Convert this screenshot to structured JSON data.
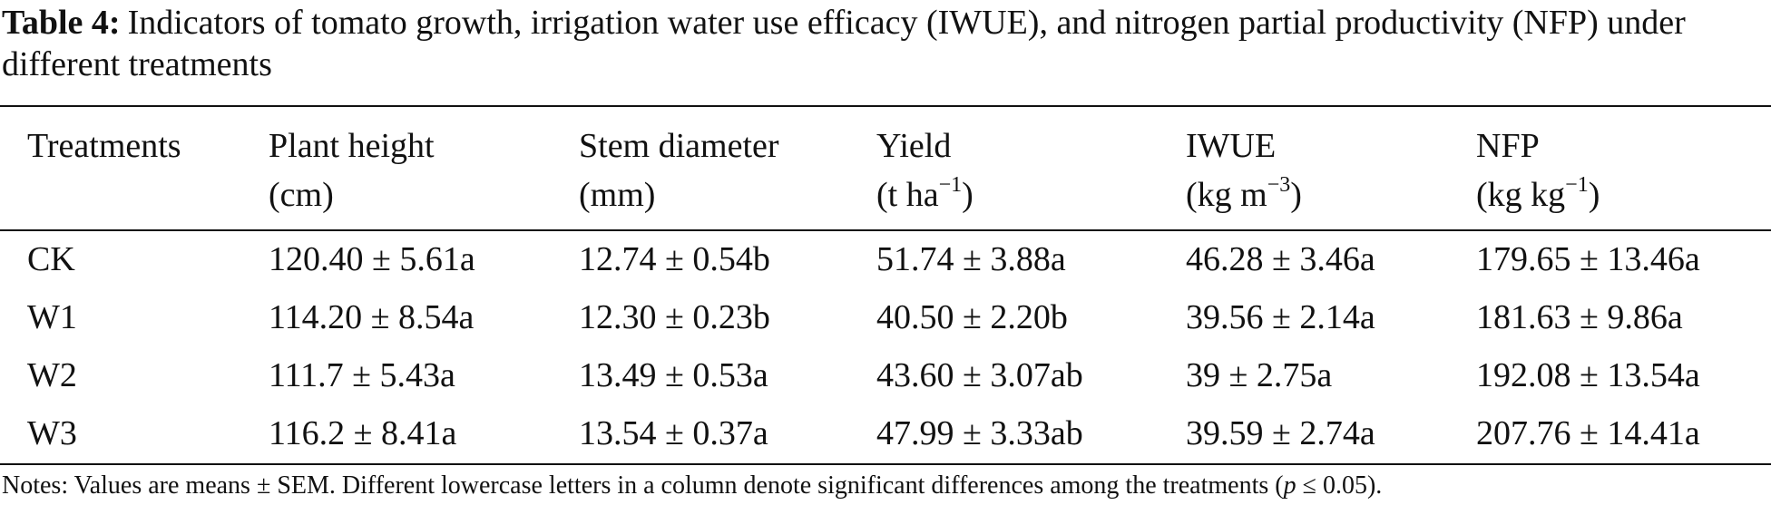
{
  "caption": {
    "label": "Table 4:",
    "text": "Indicators of tomato growth, irrigation water use efficacy (IWUE), and nitrogen partial productivity (NFP) under different treatments"
  },
  "headers": [
    {
      "line1": "Treatments",
      "line2": "",
      "unit_base": "",
      "unit_sup": "",
      "unit_end": ""
    },
    {
      "line1": "Plant height",
      "line2": "(cm)",
      "unit_base": "",
      "unit_sup": "",
      "unit_end": ""
    },
    {
      "line1": "Stem diameter",
      "line2": "(mm)",
      "unit_base": "",
      "unit_sup": "",
      "unit_end": ""
    },
    {
      "line1": "Yield",
      "line2": "",
      "unit_base": "(t ha",
      "unit_sup": "−1",
      "unit_end": ")"
    },
    {
      "line1": "IWUE",
      "line2": "",
      "unit_base": "(kg m",
      "unit_sup": "−3",
      "unit_end": ")"
    },
    {
      "line1": "NFP",
      "line2": "",
      "unit_base": "(kg kg",
      "unit_sup": "−1",
      "unit_end": ")"
    }
  ],
  "rows": [
    [
      "CK",
      "120.40 ± 5.61a",
      "12.74 ± 0.54b",
      "51.74 ± 3.88a",
      "46.28 ± 3.46a",
      "179.65 ± 13.46a"
    ],
    [
      "W1",
      "114.20 ± 8.54a",
      "12.30 ± 0.23b",
      "40.50 ± 2.20b",
      "39.56 ± 2.14a",
      "181.63 ± 9.86a"
    ],
    [
      "W2",
      "111.7 ± 5.43a",
      "13.49 ± 0.53a",
      "43.60 ± 3.07ab",
      "39 ± 2.75a",
      "192.08 ± 13.54a"
    ],
    [
      "W3",
      "116.2 ± 8.41a",
      "13.54 ± 0.37a",
      "47.99 ± 3.33ab",
      "39.59 ± 2.74a",
      "207.76 ± 14.41a"
    ]
  ],
  "notes": {
    "before": "Notes: Values are means ± SEM. Different lowercase letters in a column denote significant differences among the treatments (",
    "italic": "p",
    "after": " ≤ 0.05)."
  }
}
